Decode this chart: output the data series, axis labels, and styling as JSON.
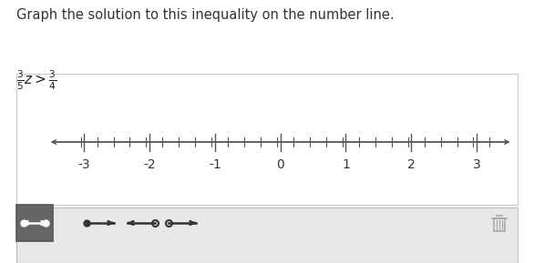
{
  "title": "Graph the solution to this inequality on the number line.",
  "background_color": "#ffffff",
  "numberline_box_color": "#ffffff",
  "numberline_box_border": "#cccccc",
  "toolbar_bg": "#e8e8e8",
  "toolbar_border": "#bbbbbb",
  "toolbar_icon_bg": "#666666",
  "line_color": "#555555",
  "tick_color": "#555555",
  "label_color": "#333333",
  "title_fontsize": 10.5,
  "inequality_fontsize": 11,
  "tick_label_fontsize": 10,
  "major_ticks": [
    -3,
    -2,
    -1,
    0,
    1,
    2,
    3
  ],
  "minor_tick_step": 0.25,
  "xlim": [
    -3.55,
    3.55
  ]
}
